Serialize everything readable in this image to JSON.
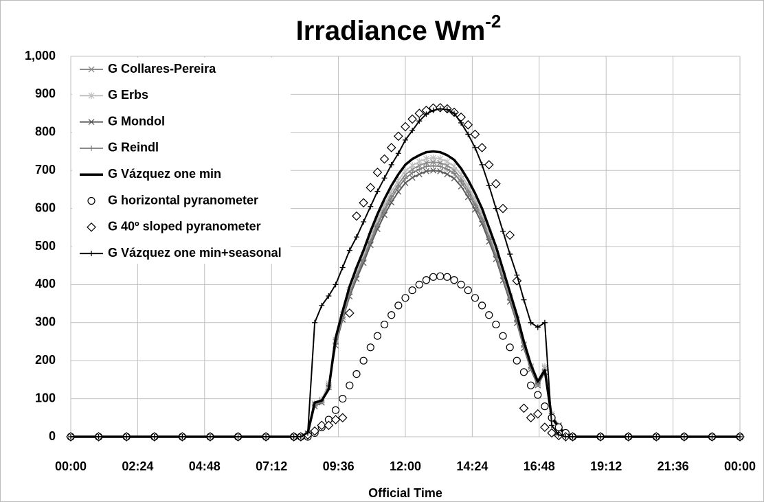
{
  "chart_data": {
    "type": "line",
    "title": "Irradiance Wm",
    "title_superscript": "-2",
    "x_label": "Official Time",
    "x": [
      0,
      1,
      2,
      3,
      4,
      5,
      6,
      7,
      8,
      8.25,
      8.5,
      8.75,
      9,
      9.25,
      9.5,
      9.75,
      10,
      10.25,
      10.5,
      10.75,
      11,
      11.25,
      11.5,
      11.75,
      12,
      12.25,
      12.5,
      12.75,
      13,
      13.25,
      13.5,
      13.75,
      14,
      14.25,
      14.5,
      14.75,
      15,
      15.25,
      15.5,
      15.75,
      16,
      16.25,
      16.5,
      16.75,
      17,
      17.25,
      17.5,
      17.75,
      18,
      19,
      20,
      21,
      22,
      23,
      24
    ],
    "xlim": [
      0,
      24
    ],
    "xticks": [
      {
        "value": 0,
        "label": "00:00"
      },
      {
        "value": 2.4,
        "label": "02:24"
      },
      {
        "value": 4.8,
        "label": "04:48"
      },
      {
        "value": 7.2,
        "label": "07:12"
      },
      {
        "value": 9.6,
        "label": "09:36"
      },
      {
        "value": 12,
        "label": "12:00"
      },
      {
        "value": 14.4,
        "label": "14:24"
      },
      {
        "value": 16.8,
        "label": "16:48"
      },
      {
        "value": 19.2,
        "label": "19:12"
      },
      {
        "value": 21.6,
        "label": "21:36"
      },
      {
        "value": 24,
        "label": "00:00"
      }
    ],
    "ylim": [
      0,
      1000
    ],
    "yticks": [
      0,
      100,
      200,
      300,
      400,
      500,
      600,
      700,
      800,
      900,
      {
        "value": 1000,
        "label": "1,000"
      }
    ],
    "grid": true,
    "legend": "top-left",
    "series": [
      {
        "name": "G Collares-Pereira",
        "color": "#8c8c8c",
        "marker": "x",
        "line": true,
        "width": 2,
        "values": [
          0,
          0,
          0,
          0,
          0,
          0,
          0,
          0,
          0,
          0,
          10,
          85,
          95,
          135,
          250,
          315,
          380,
          428,
          472,
          520,
          563,
          602,
          636,
          664,
          689,
          703,
          713,
          720,
          722,
          720,
          713,
          701,
          679,
          650,
          616,
          578,
          530,
          482,
          424,
          366,
          308,
          241,
          183,
          140,
          180,
          55,
          28,
          6,
          0,
          0,
          0,
          0,
          0,
          0,
          0
        ]
      },
      {
        "name": "G Erbs",
        "color": "#c0c0c0",
        "marker": "asterisk",
        "line": true,
        "width": 2,
        "values": [
          0,
          0,
          0,
          0,
          0,
          0,
          0,
          0,
          0,
          0,
          10,
          88,
          98,
          140,
          255,
          322,
          386,
          435,
          479,
          528,
          572,
          611,
          645,
          674,
          699,
          713,
          723,
          731,
          733,
          731,
          723,
          711,
          689,
          660,
          625,
          586,
          537,
          489,
          430,
          371,
          313,
          244,
          186,
          145,
          185,
          60,
          30,
          8,
          0,
          0,
          0,
          0,
          0,
          0,
          0
        ]
      },
      {
        "name": "G Mondol",
        "color": "#5a5a5a",
        "marker": "x",
        "line": true,
        "width": 2,
        "values": [
          0,
          0,
          0,
          0,
          0,
          0,
          0,
          0,
          0,
          0,
          8,
          80,
          90,
          130,
          240,
          308,
          369,
          415,
          457,
          504,
          546,
          583,
          616,
          644,
          667,
          681,
          690,
          698,
          700,
          698,
          690,
          679,
          658,
          630,
          597,
          560,
          513,
          467,
          411,
          355,
          299,
          233,
          177,
          135,
          170,
          55,
          30,
          10,
          0,
          0,
          0,
          0,
          0,
          0,
          0
        ]
      },
      {
        "name": "G Reindl",
        "color": "#808080",
        "marker": "plus",
        "line": true,
        "width": 2,
        "values": [
          0,
          0,
          0,
          0,
          0,
          0,
          0,
          0,
          0,
          0,
          9,
          82,
          92,
          132,
          245,
          313,
          375,
          423,
          466,
          513,
          556,
          594,
          627,
          656,
          679,
          694,
          703,
          711,
          712,
          711,
          703,
          692,
          670,
          641,
          608,
          570,
          523,
          475,
          418,
          361,
          304,
          237,
          181,
          138,
          175,
          52,
          28,
          8,
          0,
          0,
          0,
          0,
          0,
          0,
          0
        ]
      },
      {
        "name": "G Vázquez one min",
        "color": "#000000",
        "marker": "none",
        "line": true,
        "width": 3.5,
        "values": [
          0,
          0,
          0,
          0,
          0,
          0,
          0,
          0,
          0,
          0,
          10,
          90,
          95,
          125,
          260,
          330,
          395,
          445,
          490,
          540,
          585,
          625,
          660,
          690,
          715,
          730,
          740,
          748,
          750,
          748,
          740,
          728,
          705,
          675,
          640,
          600,
          550,
          500,
          440,
          380,
          320,
          250,
          190,
          145,
          175,
          50,
          25,
          5,
          0,
          0,
          0,
          0,
          0,
          0,
          0
        ]
      },
      {
        "name": "G horizontal pyranometer",
        "color": "#000000",
        "marker": "circle",
        "line": false,
        "width": 0,
        "values": [
          0,
          0,
          0,
          0,
          0,
          0,
          0,
          0,
          0,
          0,
          0,
          10,
          25,
          45,
          70,
          100,
          135,
          165,
          200,
          235,
          265,
          295,
          320,
          345,
          365,
          385,
          400,
          412,
          420,
          422,
          420,
          412,
          400,
          385,
          365,
          345,
          320,
          295,
          265,
          235,
          200,
          170,
          135,
          110,
          80,
          50,
          25,
          10,
          0,
          0,
          0,
          0,
          0,
          0,
          0
        ]
      },
      {
        "name": "G 40º sloped pyranometer",
        "color": "#000000",
        "marker": "diamond",
        "line": false,
        "width": 0,
        "values": [
          0,
          0,
          0,
          0,
          0,
          0,
          0,
          0,
          0,
          0,
          5,
          15,
          30,
          30,
          45,
          50,
          325,
          580,
          615,
          655,
          695,
          730,
          760,
          790,
          815,
          835,
          850,
          858,
          864,
          865,
          862,
          853,
          840,
          820,
          795,
          760,
          715,
          665,
          600,
          530,
          410,
          75,
          50,
          60,
          25,
          10,
          3,
          0,
          0,
          0,
          0,
          0,
          0,
          0,
          0
        ]
      },
      {
        "name": "G Vázquez one min+seasonal",
        "color": "#000000",
        "marker": "plus",
        "line": true,
        "width": 2,
        "values": [
          0,
          0,
          0,
          0,
          0,
          0,
          0,
          0,
          0,
          0,
          10,
          300,
          345,
          370,
          400,
          445,
          490,
          525,
          565,
          605,
          645,
          680,
          715,
          745,
          780,
          805,
          830,
          848,
          858,
          862,
          860,
          850,
          825,
          795,
          760,
          715,
          660,
          600,
          540,
          480,
          425,
          360,
          300,
          288,
          300,
          30,
          5,
          0,
          0,
          0,
          0,
          0,
          0,
          0,
          0
        ]
      }
    ]
  }
}
